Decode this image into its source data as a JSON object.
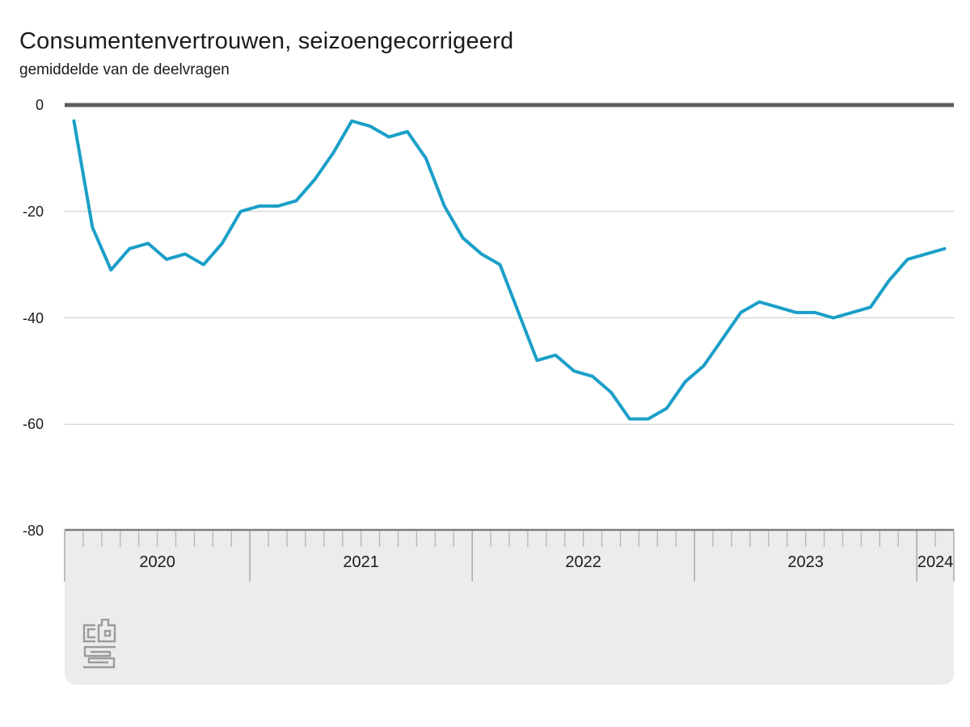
{
  "chart_data": {
    "type": "line",
    "title": "Consumentenvertrouwen, seizoengecorrigeerd",
    "subtitle": "gemiddelde van de deelvragen",
    "series_name": "Consumentenvertrouwen, seizoengecorrigeerd",
    "x": [
      "2020-03",
      "2020-04",
      "2020-05",
      "2020-06",
      "2020-07",
      "2020-08",
      "2020-09",
      "2020-10",
      "2020-11",
      "2020-12",
      "2021-01",
      "2021-02",
      "2021-03",
      "2021-04",
      "2021-05",
      "2021-06",
      "2021-07",
      "2021-08",
      "2021-09",
      "2021-10",
      "2021-11",
      "2021-12",
      "2022-01",
      "2022-02",
      "2022-03",
      "2022-04",
      "2022-05",
      "2022-06",
      "2022-07",
      "2022-08",
      "2022-09",
      "2022-10",
      "2022-11",
      "2022-12",
      "2023-01",
      "2023-02",
      "2023-03",
      "2023-04",
      "2023-05",
      "2023-06",
      "2023-07",
      "2023-08",
      "2023-09",
      "2023-10",
      "2023-11",
      "2023-12",
      "2024-01",
      "2024-02"
    ],
    "values": [
      -3,
      -23,
      -31,
      -27,
      -26,
      -29,
      -28,
      -30,
      -26,
      -20,
      -19,
      -19,
      -18,
      -14,
      -9,
      -3,
      -4,
      -6,
      -5,
      -10,
      -19,
      -25,
      -28,
      -30,
      -39,
      -48,
      -47,
      -50,
      -51,
      -54,
      -59,
      -59,
      -57,
      -52,
      -49,
      -44,
      -39,
      -37,
      -38,
      -39,
      -39,
      -40,
      -39,
      -38,
      -33,
      -29,
      -28,
      -27
    ],
    "ylim": [
      -80,
      0
    ],
    "yticks": [
      "0",
      "-20",
      "-40",
      "-60",
      "-80"
    ],
    "ytick_values": [
      0,
      -20,
      -40,
      -60,
      -80
    ],
    "year_labels": [
      "2020",
      "2021",
      "2022",
      "2023",
      "2024"
    ],
    "grid": "horizontal gridlines only",
    "legend": "none",
    "colors": {
      "line": "#1a9fc8",
      "zero_line": "#5e5e5e",
      "gridline": "#c9c9c9",
      "axis_line": "#7d7d7d",
      "panel": "#ececec",
      "tick_small": "#b5b5b5",
      "tick_long": "#9e9e9e",
      "text": "#1b1b1b",
      "logo": "#9b9b9b"
    }
  },
  "branding": {
    "organization": "CBS",
    "logo": "cbs-logo"
  }
}
